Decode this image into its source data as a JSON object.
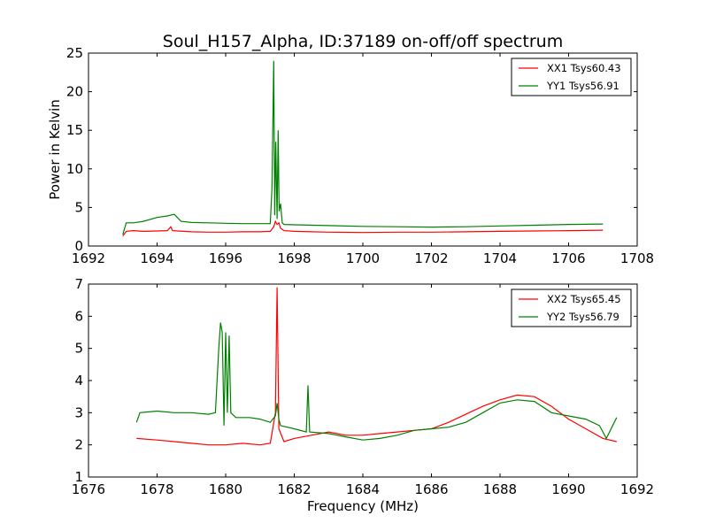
{
  "figure_title": "Soul_H157_Alpha, ID:37189 on-off/off spectrum",
  "chart_data": [
    {
      "type": "line",
      "title": "Soul_H157_Alpha, ID:37189 on-off/off spectrum",
      "xlabel": "",
      "ylabel": "Power in Kelvin",
      "xlim": [
        1692,
        1708
      ],
      "ylim": [
        0,
        25
      ],
      "xticks": [
        "1692",
        "1694",
        "1696",
        "1698",
        "1700",
        "1702",
        "1704",
        "1706",
        "1708"
      ],
      "yticks": [
        "0",
        "5",
        "10",
        "15",
        "20",
        "25"
      ],
      "legend_position": "top-right",
      "series": [
        {
          "name": "XX1 Tsys60.43",
          "color": "#ff0000",
          "x": [
            1693.0,
            1693.1,
            1693.3,
            1693.6,
            1694.0,
            1694.3,
            1694.4,
            1694.45,
            1694.6,
            1695.0,
            1695.5,
            1696.0,
            1696.5,
            1697.0,
            1697.3,
            1697.4,
            1697.45,
            1697.5,
            1697.55,
            1697.6,
            1697.7,
            1698.0,
            1698.5,
            1699.0,
            1700.0,
            1701.0,
            1702.0,
            1703.0,
            1704.0,
            1705.0,
            1706.0,
            1707.0
          ],
          "y": [
            1.3,
            1.9,
            2.0,
            1.9,
            1.95,
            2.0,
            2.5,
            2.0,
            1.95,
            1.85,
            1.8,
            1.8,
            1.85,
            1.85,
            1.9,
            2.5,
            3.2,
            2.8,
            3.0,
            2.3,
            2.0,
            1.9,
            1.85,
            1.8,
            1.75,
            1.8,
            1.8,
            1.85,
            1.9,
            1.95,
            2.0,
            2.05
          ]
        },
        {
          "name": "YY1 Tsys56.91",
          "color": "#008000",
          "x": [
            1693.0,
            1693.1,
            1693.3,
            1693.6,
            1694.0,
            1694.3,
            1694.5,
            1694.7,
            1695.0,
            1695.5,
            1696.0,
            1696.5,
            1697.0,
            1697.3,
            1697.35,
            1697.4,
            1697.43,
            1697.46,
            1697.5,
            1697.53,
            1697.56,
            1697.6,
            1697.65,
            1697.7,
            1698.0,
            1699.0,
            1700.0,
            1701.0,
            1702.0,
            1703.0,
            1704.0,
            1705.0,
            1706.0,
            1707.0
          ],
          "y": [
            1.5,
            3.0,
            3.0,
            3.2,
            3.7,
            3.9,
            4.1,
            3.2,
            3.05,
            3.0,
            2.95,
            2.9,
            2.9,
            2.9,
            7.5,
            24.0,
            4.0,
            13.5,
            3.5,
            15.0,
            4.5,
            5.5,
            3.0,
            2.8,
            2.75,
            2.65,
            2.55,
            2.5,
            2.45,
            2.5,
            2.6,
            2.7,
            2.8,
            2.85
          ]
        }
      ]
    },
    {
      "type": "line",
      "title": "",
      "xlabel": "Frequency (MHz)",
      "ylabel": "",
      "xlim": [
        1676,
        1692
      ],
      "ylim": [
        1,
        7
      ],
      "xticks": [
        "1676",
        "1678",
        "1680",
        "1682",
        "1684",
        "1686",
        "1688",
        "1690",
        "1692"
      ],
      "yticks": [
        "1",
        "2",
        "3",
        "4",
        "5",
        "6",
        "7"
      ],
      "legend_position": "top-right",
      "series": [
        {
          "name": "XX2 Tsys65.45",
          "color": "#ff0000",
          "x": [
            1677.4,
            1678.0,
            1678.5,
            1679.0,
            1679.5,
            1680.0,
            1680.5,
            1681.0,
            1681.3,
            1681.45,
            1681.5,
            1681.55,
            1681.7,
            1682.0,
            1682.5,
            1683.0,
            1683.5,
            1684.0,
            1684.5,
            1685.0,
            1685.5,
            1686.0,
            1686.5,
            1687.0,
            1687.5,
            1688.0,
            1688.5,
            1689.0,
            1689.5,
            1690.0,
            1690.5,
            1691.0,
            1691.4
          ],
          "y": [
            2.2,
            2.15,
            2.1,
            2.05,
            2.0,
            2.0,
            2.05,
            2.0,
            2.05,
            3.0,
            6.9,
            2.5,
            2.1,
            2.2,
            2.3,
            2.4,
            2.3,
            2.3,
            2.35,
            2.4,
            2.45,
            2.5,
            2.7,
            2.95,
            3.2,
            3.4,
            3.55,
            3.5,
            3.2,
            2.8,
            2.5,
            2.2,
            2.1
          ]
        },
        {
          "name": "YY2 Tsys56.79",
          "color": "#008000",
          "x": [
            1677.4,
            1677.5,
            1678.0,
            1678.5,
            1679.0,
            1679.5,
            1679.7,
            1679.8,
            1679.85,
            1679.9,
            1679.95,
            1680.0,
            1680.05,
            1680.1,
            1680.15,
            1680.3,
            1680.7,
            1681.0,
            1681.3,
            1681.45,
            1681.5,
            1681.55,
            1681.6,
            1682.0,
            1682.35,
            1682.4,
            1682.45,
            1683.0,
            1683.5,
            1684.0,
            1684.5,
            1685.0,
            1685.5,
            1686.0,
            1686.5,
            1687.0,
            1687.5,
            1688.0,
            1688.5,
            1689.0,
            1689.5,
            1690.0,
            1690.5,
            1690.9,
            1691.1,
            1691.4
          ],
          "y": [
            2.7,
            3.0,
            3.05,
            3.0,
            3.0,
            2.95,
            3.0,
            5.0,
            5.8,
            5.5,
            2.6,
            5.5,
            3.0,
            5.4,
            3.0,
            2.85,
            2.85,
            2.8,
            2.7,
            2.9,
            3.3,
            2.8,
            2.6,
            2.5,
            2.4,
            3.85,
            2.4,
            2.35,
            2.25,
            2.15,
            2.2,
            2.3,
            2.45,
            2.5,
            2.55,
            2.7,
            3.0,
            3.3,
            3.4,
            3.35,
            3.0,
            2.9,
            2.8,
            2.6,
            2.2,
            2.85
          ]
        }
      ]
    }
  ]
}
